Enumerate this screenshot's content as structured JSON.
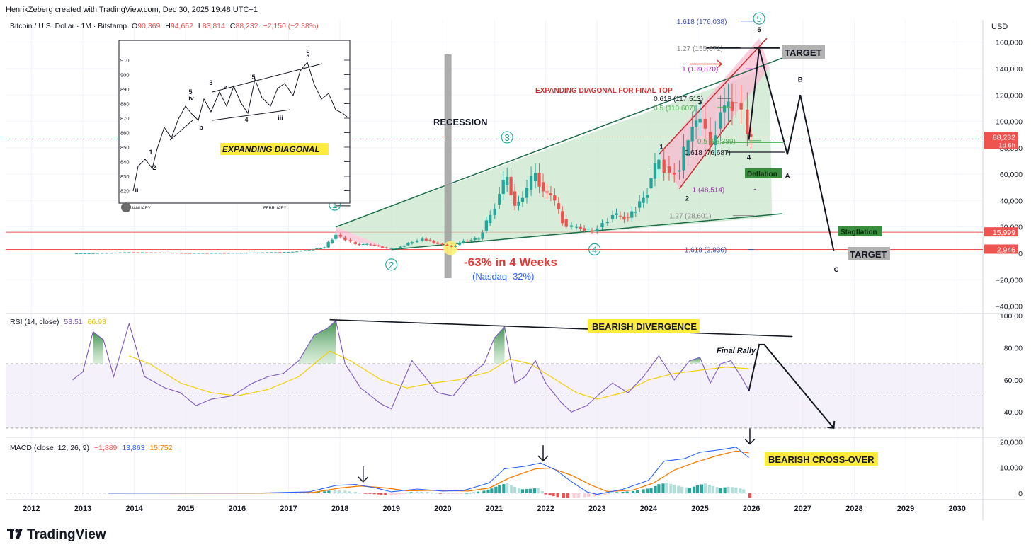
{
  "header": {
    "attribution": "HenrikZeberg created with TradingView.com, Dec 30, 2025 19:48 UTC+1",
    "symbol": "Bitcoin / U.S. Dollar · 1M · Bitstamp",
    "o_label": "O",
    "o_value": "90,369",
    "h_label": "H",
    "h_value": "94,652",
    "l_label": "L",
    "l_value": "83,814",
    "c_label": "C",
    "c_value": "88,232",
    "change": "−2,150 (−2.38%)",
    "currency": "USD"
  },
  "footer": {
    "logo_text": "TradingView"
  },
  "colors": {
    "up": "#26a69a",
    "down": "#ef5350",
    "wave_green": "#1e7a5a",
    "rsi_line": "#7e57c2",
    "rsi_ma": "#f5d000",
    "macd_line": "#2962ff",
    "signal_line": "#f57c00",
    "fib_purple": "#9c27b0",
    "fib_blue": "#3f51b5",
    "label_red": "#d32f2f"
  },
  "chart_data": {
    "type": "candlestick",
    "title": "Bitcoin / U.S. Dollar · 1M · Bitstamp",
    "x_axis": {
      "labels": [
        "2012",
        "2013",
        "2014",
        "2015",
        "2016",
        "2017",
        "2018",
        "2019",
        "2020",
        "2021",
        "2022",
        "2023",
        "2024",
        "2025",
        "2026",
        "2027",
        "2028",
        "2029",
        "2030"
      ],
      "range": [
        2011.5,
        2030.5
      ]
    },
    "price_axis": {
      "ticks": [
        -40000,
        -20000,
        0,
        20000,
        40000,
        60000,
        80000,
        100000,
        120000,
        140000,
        160000
      ],
      "tick_labels": [
        "−40,000",
        "−20,000",
        "0",
        "20,000",
        "40,000",
        "60,000",
        "80,000",
        "100,000",
        "120,000",
        "140,000",
        "160,000"
      ],
      "range": [
        -44000,
        177000
      ]
    },
    "price_tags": [
      {
        "value": 88232,
        "label": "88,232",
        "sublabel": "1d 6h",
        "color": "#ef5350"
      },
      {
        "value": 15999,
        "label": "15,999",
        "color": "#ef5350"
      },
      {
        "value": 2946,
        "label": "2,946",
        "color": "#ef5350"
      }
    ],
    "candles_anchor_closes": [
      [
        2012.8,
        12
      ],
      [
        2013.2,
        100
      ],
      [
        2013.9,
        800
      ],
      [
        2014.5,
        600
      ],
      [
        2015.0,
        230
      ],
      [
        2015.5,
        260
      ],
      [
        2016.0,
        370
      ],
      [
        2016.5,
        650
      ],
      [
        2017.0,
        1000
      ],
      [
        2017.4,
        2500
      ],
      [
        2017.7,
        4500
      ],
      [
        2017.92,
        14000
      ],
      [
        2018.1,
        10000
      ],
      [
        2018.3,
        7000
      ],
      [
        2018.6,
        6500
      ],
      [
        2018.9,
        3800
      ],
      [
        2019.1,
        3800
      ],
      [
        2019.4,
        8500
      ],
      [
        2019.6,
        11000
      ],
      [
        2019.9,
        7200
      ],
      [
        2020.17,
        5000
      ],
      [
        2020.4,
        9500
      ],
      [
        2020.7,
        11000
      ],
      [
        2020.92,
        29000
      ],
      [
        2021.1,
        45000
      ],
      [
        2021.25,
        58000
      ],
      [
        2021.4,
        36000
      ],
      [
        2021.55,
        42000
      ],
      [
        2021.8,
        61000
      ],
      [
        2021.95,
        47000
      ],
      [
        2022.1,
        44000
      ],
      [
        2022.4,
        20000
      ],
      [
        2022.6,
        20000
      ],
      [
        2022.9,
        16500
      ],
      [
        2023.1,
        23000
      ],
      [
        2023.3,
        29000
      ],
      [
        2023.6,
        27000
      ],
      [
        2023.9,
        42000
      ],
      [
        2024.2,
        71000
      ],
      [
        2024.4,
        61000
      ],
      [
        2024.6,
        63000
      ],
      [
        2024.85,
        96000
      ],
      [
        2025.0,
        102000
      ],
      [
        2025.2,
        82000
      ],
      [
        2025.4,
        107000
      ],
      [
        2025.55,
        115000
      ],
      [
        2025.7,
        114000
      ],
      [
        2025.8,
        109000
      ],
      [
        2025.92,
        90369
      ],
      [
        2025.99,
        88232
      ]
    ],
    "trendlines": [
      {
        "name": "upper-channel",
        "from": [
          2017.92,
          20000
        ],
        "to": [
          2026.6,
          148000
        ]
      },
      {
        "name": "lower-channel",
        "from": [
          2019.0,
          2900
        ],
        "to": [
          2026.6,
          30000
        ]
      },
      {
        "name": "diagonal-top-line",
        "from": [
          2024.2,
          75000
        ],
        "to": [
          2026.3,
          163000
        ]
      },
      {
        "name": "diagonal-bottom-line",
        "from": [
          2024.6,
          49000
        ],
        "to": [
          2025.6,
          101000
        ]
      }
    ],
    "projection_path": [
      [
        2025.95,
        86000
      ],
      [
        2026.15,
        155000
      ],
      [
        2026.7,
        75000
      ],
      [
        2026.95,
        120000
      ],
      [
        2027.6,
        2000
      ]
    ],
    "fib_levels": [
      {
        "label": "1.618 (176,038)",
        "value": 176038,
        "color": "#3f51b5"
      },
      {
        "label": "1.27 (155,671)",
        "value": 155671,
        "color": "#888888"
      },
      {
        "label": "1 (139,870)",
        "value": 139870,
        "color": "#9c27b0"
      },
      {
        "label": "0.618 (117,513)",
        "value": 117513,
        "color": "#131722"
      },
      {
        "label": "0.5 (110,607)",
        "value": 110607,
        "color": "#4caf50"
      },
      {
        "label": "0.5 (85,389)",
        "value": 85389,
        "color": "#4caf50"
      },
      {
        "label": "0.618 (76,687)",
        "value": 76687,
        "color": "#131722"
      },
      {
        "label": "1 (48,514)",
        "value": 48514,
        "color": "#9c27b0"
      },
      {
        "label": "1.27 (28,601)",
        "value": 28601,
        "color": "#888888"
      },
      {
        "label": "1.618 (2,936)",
        "value": 2936,
        "color": "#3f51b5"
      }
    ],
    "wave_labels_circled": [
      "1",
      "2",
      "3",
      "4",
      "5"
    ],
    "wave_labels_small": [
      "1",
      "2",
      "3",
      "4",
      "5",
      "A",
      "B",
      "C"
    ],
    "annotations": {
      "recession": "RECESSION",
      "drop": "-63% in 4 Weeks",
      "nasdaq": "(Nasdaq -32%)",
      "expanding": "EXPANDING DIAGONAL FOR FINAL TOP",
      "target": "TARGET",
      "deflation": "Deflation",
      "stagflation": "Stagflation"
    },
    "inset": {
      "caption": "EXPANDING DIAGONAL",
      "y_ticks": [
        "910",
        "900",
        "890",
        "880",
        "870",
        "860",
        "850",
        "840",
        "830",
        "820"
      ],
      "x_labels": [
        "JANUARY",
        "FEBRUARY"
      ],
      "wave_marks": [
        "ii",
        "1",
        "2",
        "3",
        "4",
        "iii",
        "5",
        "iv",
        "v",
        "5",
        "b",
        "c",
        "a"
      ]
    },
    "rsi": {
      "title": "RSI (14, close)",
      "value_rsi": "53.51",
      "value_ma": "66.93",
      "ticks": [
        "100.00",
        "80.00",
        "60.00",
        "40.00"
      ],
      "tick_values": [
        100,
        80,
        60,
        40
      ],
      "band_upper": 70,
      "band_mid": 50,
      "band_lower": 30,
      "range": [
        26,
        100
      ],
      "annotation": "BEARISH DIVERGENCE",
      "final_rally": "Final Rally",
      "series": [
        [
          2012.8,
          60
        ],
        [
          2013.0,
          65
        ],
        [
          2013.2,
          90
        ],
        [
          2013.4,
          85
        ],
        [
          2013.6,
          62
        ],
        [
          2013.9,
          95
        ],
        [
          2014.2,
          62
        ],
        [
          2014.6,
          55
        ],
        [
          2014.9,
          52
        ],
        [
          2015.2,
          44
        ],
        [
          2015.5,
          48
        ],
        [
          2015.9,
          50
        ],
        [
          2016.3,
          58
        ],
        [
          2016.6,
          62
        ],
        [
          2016.9,
          64
        ],
        [
          2017.2,
          72
        ],
        [
          2017.5,
          88
        ],
        [
          2017.75,
          92
        ],
        [
          2017.92,
          97
        ],
        [
          2018.1,
          70
        ],
        [
          2018.4,
          55
        ],
        [
          2018.8,
          45
        ],
        [
          2019.0,
          42
        ],
        [
          2019.4,
          72
        ],
        [
          2019.6,
          64
        ],
        [
          2019.9,
          52
        ],
        [
          2020.2,
          50
        ],
        [
          2020.5,
          62
        ],
        [
          2020.8,
          70
        ],
        [
          2021.0,
          86
        ],
        [
          2021.2,
          93
        ],
        [
          2021.4,
          58
        ],
        [
          2021.6,
          62
        ],
        [
          2021.8,
          72
        ],
        [
          2022.0,
          58
        ],
        [
          2022.3,
          46
        ],
        [
          2022.5,
          40
        ],
        [
          2022.8,
          44
        ],
        [
          2023.0,
          50
        ],
        [
          2023.3,
          58
        ],
        [
          2023.6,
          52
        ],
        [
          2023.9,
          62
        ],
        [
          2024.2,
          75
        ],
        [
          2024.5,
          60
        ],
        [
          2024.8,
          72
        ],
        [
          2025.0,
          74
        ],
        [
          2025.2,
          58
        ],
        [
          2025.4,
          70
        ],
        [
          2025.6,
          72
        ],
        [
          2025.8,
          62
        ],
        [
          2025.95,
          53.5
        ]
      ],
      "ma_series": [
        [
          2013.9,
          75
        ],
        [
          2014.3,
          70
        ],
        [
          2014.9,
          58
        ],
        [
          2015.5,
          52
        ],
        [
          2016.0,
          50
        ],
        [
          2016.6,
          54
        ],
        [
          2017.2,
          62
        ],
        [
          2017.8,
          78
        ],
        [
          2018.2,
          72
        ],
        [
          2018.8,
          60
        ],
        [
          2019.3,
          55
        ],
        [
          2019.8,
          58
        ],
        [
          2020.3,
          60
        ],
        [
          2020.9,
          65
        ],
        [
          2021.3,
          73
        ],
        [
          2021.7,
          70
        ],
        [
          2022.1,
          62
        ],
        [
          2022.6,
          52
        ],
        [
          2023.0,
          48
        ],
        [
          2023.5,
          52
        ],
        [
          2024.0,
          60
        ],
        [
          2024.5,
          64
        ],
        [
          2025.0,
          66
        ],
        [
          2025.5,
          68
        ],
        [
          2025.95,
          66.9
        ]
      ],
      "projection": [
        [
          2025.95,
          53
        ],
        [
          2026.15,
          82
        ],
        [
          2026.25,
          82
        ],
        [
          2027.6,
          30
        ]
      ]
    },
    "macd": {
      "title": "MACD (close, 12, 26, 9)",
      "value_hist": "−1,889",
      "value_macd": "13,863",
      "value_signal": "15,752",
      "ticks": [
        "20,000",
        "10,000",
        "0"
      ],
      "tick_values": [
        20000,
        10000,
        0
      ],
      "range": [
        -2000,
        21000
      ],
      "annotation": "BEARISH CROSS-OVER",
      "macd_series": [
        [
          2013.5,
          0
        ],
        [
          2016.5,
          50
        ],
        [
          2017.4,
          500
        ],
        [
          2017.92,
          3000
        ],
        [
          2018.3,
          3400
        ],
        [
          2018.7,
          2000
        ],
        [
          2019.0,
          500
        ],
        [
          2019.5,
          1600
        ],
        [
          2020.0,
          800
        ],
        [
          2020.4,
          1000
        ],
        [
          2020.9,
          4000
        ],
        [
          2021.2,
          9500
        ],
        [
          2021.6,
          10500
        ],
        [
          2021.9,
          11800
        ],
        [
          2022.2,
          9000
        ],
        [
          2022.5,
          4500
        ],
        [
          2022.8,
          500
        ],
        [
          2023.0,
          -500
        ],
        [
          2023.5,
          1500
        ],
        [
          2024.0,
          5000
        ],
        [
          2024.3,
          12500
        ],
        [
          2024.7,
          13500
        ],
        [
          2025.0,
          16000
        ],
        [
          2025.4,
          17000
        ],
        [
          2025.7,
          18000
        ],
        [
          2025.95,
          13863
        ]
      ],
      "signal_series": [
        [
          2013.5,
          0
        ],
        [
          2016.5,
          30
        ],
        [
          2017.5,
          300
        ],
        [
          2018.0,
          2000
        ],
        [
          2018.4,
          2800
        ],
        [
          2018.9,
          2000
        ],
        [
          2019.3,
          900
        ],
        [
          2019.8,
          1100
        ],
        [
          2020.5,
          800
        ],
        [
          2020.9,
          2000
        ],
        [
          2021.3,
          6000
        ],
        [
          2021.8,
          9500
        ],
        [
          2022.1,
          9800
        ],
        [
          2022.5,
          7000
        ],
        [
          2022.9,
          3000
        ],
        [
          2023.2,
          600
        ],
        [
          2023.7,
          1200
        ],
        [
          2024.1,
          4000
        ],
        [
          2024.5,
          9000
        ],
        [
          2024.9,
          12000
        ],
        [
          2025.3,
          14500
        ],
        [
          2025.7,
          16500
        ],
        [
          2025.95,
          15752
        ]
      ],
      "histogram": [
        [
          2017.5,
          300
        ],
        [
          2017.7,
          700
        ],
        [
          2017.9,
          1200
        ],
        [
          2018.1,
          900
        ],
        [
          2018.3,
          500
        ],
        [
          2018.5,
          -200
        ],
        [
          2018.8,
          -600
        ],
        [
          2019.0,
          -900
        ],
        [
          2019.3,
          200
        ],
        [
          2019.5,
          600
        ],
        [
          2019.7,
          500
        ],
        [
          2020.0,
          -300
        ],
        [
          2020.3,
          -200
        ],
        [
          2020.6,
          300
        ],
        [
          2020.8,
          900
        ],
        [
          2020.95,
          1800
        ],
        [
          2021.1,
          3200
        ],
        [
          2021.25,
          3800
        ],
        [
          2021.4,
          2500
        ],
        [
          2021.55,
          1500
        ],
        [
          2021.7,
          1700
        ],
        [
          2021.85,
          2000
        ],
        [
          2022.0,
          -500
        ],
        [
          2022.15,
          -1200
        ],
        [
          2022.35,
          -1800
        ],
        [
          2022.55,
          -2000
        ],
        [
          2022.75,
          -1600
        ],
        [
          2022.95,
          -1300
        ],
        [
          2023.15,
          -800
        ],
        [
          2023.3,
          300
        ],
        [
          2023.5,
          500
        ],
        [
          2023.7,
          800
        ],
        [
          2023.9,
          1500
        ],
        [
          2024.05,
          2000
        ],
        [
          2024.2,
          3500
        ],
        [
          2024.35,
          4000
        ],
        [
          2024.5,
          3200
        ],
        [
          2024.65,
          2500
        ],
        [
          2024.8,
          2000
        ],
        [
          2024.95,
          3000
        ],
        [
          2025.1,
          3800
        ],
        [
          2025.25,
          2800
        ],
        [
          2025.4,
          2000
        ],
        [
          2025.55,
          2500
        ],
        [
          2025.7,
          2200
        ],
        [
          2025.85,
          1500
        ],
        [
          2025.97,
          -1889
        ]
      ]
    }
  }
}
